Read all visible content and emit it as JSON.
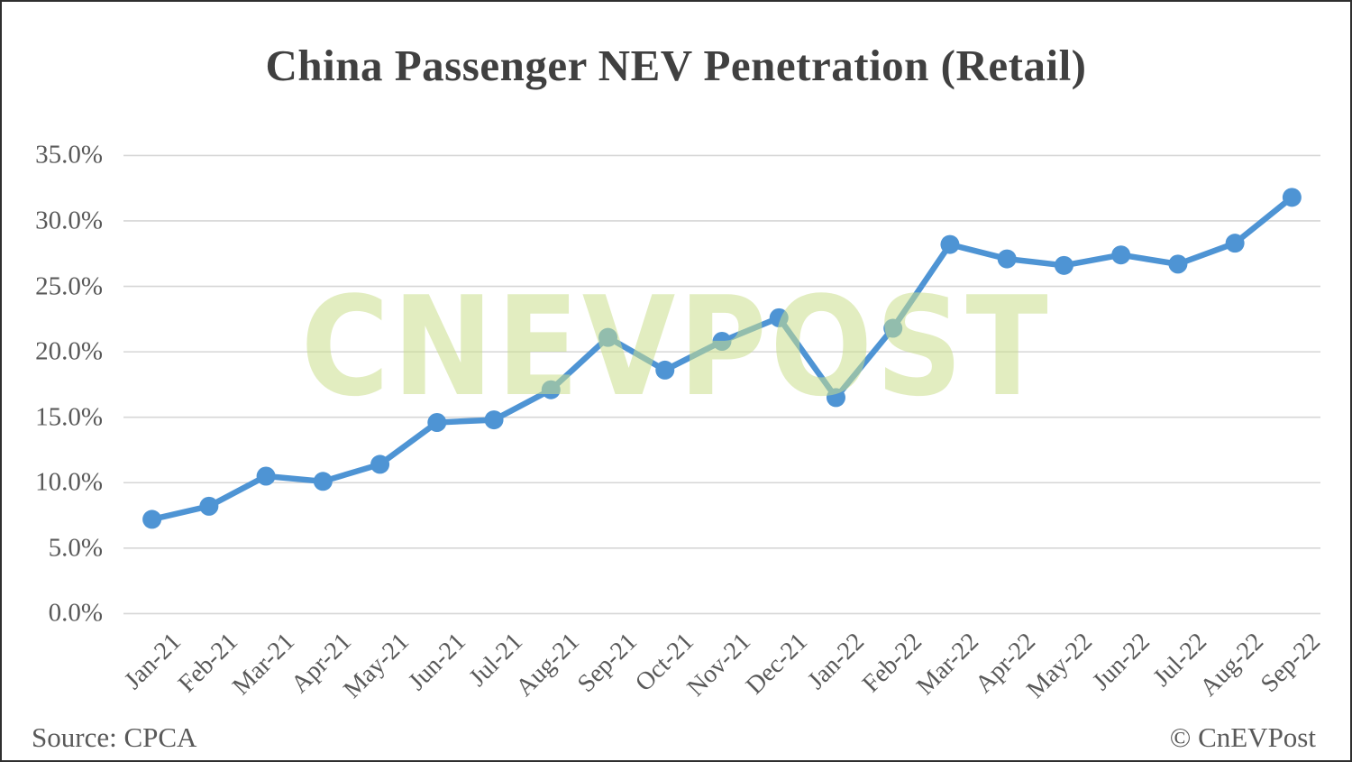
{
  "title": "China Passenger NEV Penetration (Retail)",
  "watermark": "CNEVPOST",
  "footer": {
    "source": "Source: CPCA",
    "credit": "© CnEVPost"
  },
  "chart_data": {
    "type": "line",
    "title": "China Passenger NEV Penetration (Retail)",
    "xlabel": "",
    "ylabel": "",
    "categories": [
      "Jan-21",
      "Feb-21",
      "Mar-21",
      "Apr-21",
      "May-21",
      "Jun-21",
      "Jul-21",
      "Aug-21",
      "Sep-21",
      "Oct-21",
      "Nov-21",
      "Dec-21",
      "Jan-22",
      "Feb-22",
      "Mar-22",
      "Apr-22",
      "May-22",
      "Jun-22",
      "Jul-22",
      "Aug-22",
      "Sep-22"
    ],
    "series": [
      {
        "name": "NEV retail penetration",
        "values": [
          7.2,
          8.2,
          10.5,
          10.1,
          11.4,
          14.6,
          14.8,
          17.1,
          21.1,
          18.6,
          20.8,
          22.6,
          16.5,
          21.8,
          28.2,
          27.1,
          26.6,
          27.4,
          26.7,
          28.3,
          31.8
        ],
        "unit": "%"
      }
    ],
    "ylim": [
      0,
      35
    ],
    "yticks": [
      35,
      30,
      25,
      20,
      15,
      10,
      5,
      0
    ],
    "ytick_labels": [
      "35.0%",
      "30.0%",
      "25.0%",
      "20.0%",
      "15.0%",
      "10.0%",
      "5.0%",
      "0.0%"
    ],
    "grid": "horizontal",
    "legend_position": "none",
    "colors": {
      "line": "#4e94d4",
      "marker": "#4e94d4",
      "gridline": "#d6d6d6",
      "title_text": "#404040",
      "axis_text": "#595959",
      "watermark": "#cade8c"
    }
  }
}
